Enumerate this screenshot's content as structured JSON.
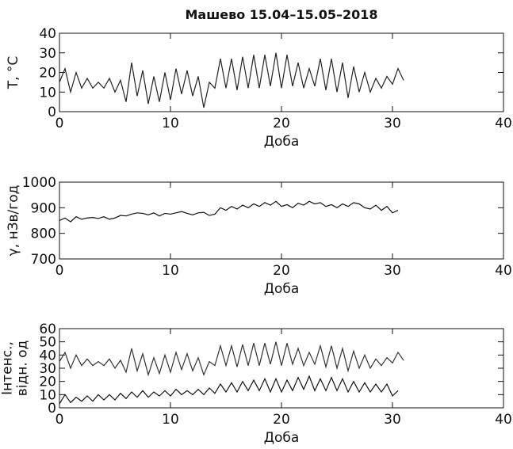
{
  "chart_data": [
    {
      "type": "line",
      "title": "Машево 15.04–15.05–2018",
      "xlabel": "Доба",
      "ylabel": [
        "T, °C"
      ],
      "xlim": [
        0,
        40
      ],
      "xticks": [
        0,
        10,
        20,
        30,
        40
      ],
      "ylim": [
        0,
        40
      ],
      "yticks": [
        0,
        10,
        20,
        30,
        40
      ],
      "x": [
        0,
        0.5,
        1,
        1.5,
        2,
        2.5,
        3,
        3.5,
        4,
        4.5,
        5,
        5.5,
        6,
        6.5,
        7,
        7.5,
        8,
        8.5,
        9,
        9.5,
        10,
        10.5,
        11,
        11.5,
        12,
        12.5,
        13,
        13.5,
        14,
        14.5,
        15,
        15.5,
        16,
        16.5,
        17,
        17.5,
        18,
        18.5,
        19,
        19.5,
        20,
        20.5,
        21,
        21.5,
        22,
        22.5,
        23,
        23.5,
        24,
        24.5,
        25,
        25.5,
        26,
        26.5,
        27,
        27.5,
        28,
        28.5,
        29,
        29.5,
        30,
        30.5,
        31
      ],
      "series": [
        {
          "color": "#222222",
          "values": [
            15,
            22,
            10,
            20,
            12,
            17,
            12,
            15,
            12,
            17,
            10,
            16,
            5,
            25,
            8,
            21,
            4,
            18,
            5,
            20,
            6,
            22,
            9,
            21,
            8,
            18,
            2,
            15,
            12,
            27,
            12,
            27,
            11,
            28,
            12,
            29,
            12,
            29,
            13,
            30,
            12,
            29,
            13,
            25,
            12,
            22,
            13,
            27,
            11,
            27,
            10,
            25,
            7,
            23,
            10,
            20,
            10,
            17,
            12,
            18,
            14,
            22,
            16
          ]
        }
      ]
    },
    {
      "type": "line",
      "xlabel": "Доба",
      "ylabel": [
        "γ, нЗв/год"
      ],
      "xlim": [
        0,
        40
      ],
      "xticks": [
        0,
        10,
        20,
        30,
        40
      ],
      "ylim": [
        700,
        1000
      ],
      "yticks": [
        700,
        800,
        900,
        1000
      ],
      "x": [
        0,
        0.5,
        1,
        1.5,
        2,
        2.5,
        3,
        3.5,
        4,
        4.5,
        5,
        5.5,
        6,
        6.5,
        7,
        7.5,
        8,
        8.5,
        9,
        9.5,
        10,
        10.5,
        11,
        11.5,
        12,
        12.5,
        13,
        13.5,
        14,
        14.5,
        15,
        15.5,
        16,
        16.5,
        17,
        17.5,
        18,
        18.5,
        19,
        19.5,
        20,
        20.5,
        21,
        21.5,
        22,
        22.5,
        23,
        23.5,
        24,
        24.5,
        25,
        25.5,
        26,
        26.5,
        27,
        27.5,
        28,
        28.5,
        29,
        29.5,
        30,
        30.5
      ],
      "series": [
        {
          "color": "#111111",
          "values": [
            850,
            860,
            845,
            865,
            855,
            860,
            862,
            858,
            865,
            855,
            860,
            870,
            868,
            875,
            880,
            878,
            872,
            880,
            868,
            878,
            875,
            880,
            885,
            878,
            872,
            880,
            882,
            870,
            875,
            900,
            890,
            905,
            895,
            910,
            900,
            915,
            905,
            920,
            910,
            925,
            905,
            912,
            900,
            918,
            910,
            925,
            915,
            920,
            905,
            912,
            900,
            915,
            905,
            920,
            915,
            900,
            895,
            910,
            890,
            905,
            880,
            890
          ]
        }
      ]
    },
    {
      "type": "line",
      "xlabel": "Доба",
      "ylabel": [
        "Інтенс.,",
        "відн. од"
      ],
      "xlim": [
        0,
        40
      ],
      "xticks": [
        0,
        10,
        20,
        30,
        40
      ],
      "ylim": [
        0,
        60
      ],
      "yticks": [
        0,
        10,
        20,
        30,
        40,
        50,
        60
      ],
      "x": [
        0,
        0.5,
        1,
        1.5,
        2,
        2.5,
        3,
        3.5,
        4,
        4.5,
        5,
        5.5,
        6,
        6.5,
        7,
        7.5,
        8,
        8.5,
        9,
        9.5,
        10,
        10.5,
        11,
        11.5,
        12,
        12.5,
        13,
        13.5,
        14,
        14.5,
        15,
        15.5,
        16,
        16.5,
        17,
        17.5,
        18,
        18.5,
        19,
        19.5,
        20,
        20.5,
        21,
        21.5,
        22,
        22.5,
        23,
        23.5,
        24,
        24.5,
        25,
        25.5,
        26,
        26.5,
        27,
        27.5,
        28,
        28.5,
        29,
        29.5,
        30,
        30.5,
        31
      ],
      "series": [
        {
          "color": "#333333",
          "values": [
            35,
            42,
            30,
            40,
            32,
            37,
            32,
            35,
            32,
            37,
            30,
            36,
            27,
            45,
            28,
            41,
            25,
            38,
            26,
            40,
            27,
            42,
            29,
            41,
            28,
            38,
            25,
            35,
            32,
            47,
            32,
            47,
            31,
            48,
            32,
            49,
            32,
            49,
            33,
            50,
            32,
            49,
            33,
            45,
            32,
            42,
            33,
            47,
            31,
            47,
            30,
            45,
            28,
            43,
            30,
            40,
            30,
            37,
            32,
            38,
            34,
            42,
            36
          ]
        },
        {
          "color": "#111111",
          "values": [
            3,
            10,
            4,
            8,
            5,
            9,
            5,
            10,
            6,
            10,
            6,
            11,
            7,
            12,
            8,
            13,
            8,
            12,
            9,
            13,
            9,
            14,
            10,
            13,
            10,
            14,
            10,
            15,
            11,
            18,
            12,
            19,
            12,
            20,
            13,
            21,
            13,
            22,
            12,
            22,
            12,
            21,
            13,
            23,
            14,
            24,
            13,
            22,
            13,
            23,
            13,
            22,
            12,
            20,
            12,
            19,
            12,
            18,
            12,
            18,
            9,
            13,
            null
          ]
        }
      ]
    }
  ]
}
